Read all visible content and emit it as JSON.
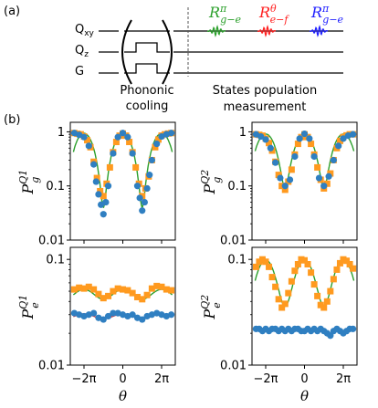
{
  "panel_a": {
    "label": "(a)",
    "lines": [
      {
        "base": "Q",
        "sub": "xy"
      },
      {
        "base": "Q",
        "sub": "z"
      },
      {
        "base": "G",
        "sub": ""
      }
    ],
    "stage1": [
      "Phononic",
      "cooling"
    ],
    "stage2": [
      "States population",
      "measurement"
    ],
    "pulses": [
      {
        "base": "R",
        "sup": "π",
        "sub": "g−e",
        "color": "#2ca02c"
      },
      {
        "base": "R",
        "sup": "θ",
        "sub": "e−f",
        "color": "#ff2020"
      },
      {
        "base": "R",
        "sup": "π",
        "sub": "g−e",
        "color": "#1f1fff"
      }
    ]
  },
  "panel_b": {
    "label": "(b)",
    "y_tick_labels_top": [
      "1",
      "0.1",
      "0.01"
    ],
    "y_tick_labels_bottom": [
      "0.1",
      "0.01"
    ],
    "x_tick_labels": [
      "−2π",
      "0",
      "2π"
    ],
    "xlabel": "θ",
    "ylabels": {
      "pg1": {
        "base": "P",
        "sub": "g",
        "sup": "Q1"
      },
      "pg2": {
        "base": "P",
        "sub": "g",
        "sup": "Q2"
      },
      "pe1": {
        "base": "P",
        "sub": "e",
        "sup": "Q1"
      },
      "pe2": {
        "base": "P",
        "sub": "e",
        "sup": "Q2"
      }
    }
  },
  "colors": {
    "orange": "#ff9a1f",
    "blue": "#2f7fc1",
    "green": "#2ca02c",
    "red": "#e8251f"
  },
  "chart_data": [
    {
      "id": "pg1",
      "type": "scatter",
      "x_range": [
        -8.5,
        8.5
      ],
      "ylim": [
        0.01,
        1.5
      ],
      "yscale": "log",
      "series": [
        {
          "marker": "square",
          "color": "#ff9a1f",
          "x": [
            -7.85,
            -7.33,
            -6.81,
            -6.28,
            -5.76,
            -5.24,
            -4.71,
            -4.19,
            -3.67,
            -3.14,
            -2.62,
            -2.09,
            -1.57,
            -1.05,
            -0.52,
            0,
            0.52,
            1.05,
            1.57,
            2.09,
            2.62,
            3.14,
            3.67,
            4.19,
            4.71,
            5.24,
            5.76,
            6.28,
            6.81,
            7.33,
            7.85
          ],
          "y": [
            0.95,
            0.92,
            0.9,
            0.82,
            0.7,
            0.52,
            0.28,
            0.14,
            0.08,
            0.065,
            0.11,
            0.22,
            0.42,
            0.65,
            0.85,
            0.93,
            0.85,
            0.65,
            0.42,
            0.22,
            0.11,
            0.065,
            0.09,
            0.15,
            0.3,
            0.52,
            0.72,
            0.85,
            0.9,
            0.93,
            0.95
          ]
        },
        {
          "marker": "circle",
          "color": "#2f7fc1",
          "x": [
            -7.85,
            -7.07,
            -6.28,
            -5.5,
            -4.71,
            -4.32,
            -3.93,
            -3.53,
            -3.14,
            -2.75,
            -2.36,
            -1.57,
            -0.79,
            0,
            0.79,
            1.57,
            2.36,
            2.75,
            3.14,
            3.53,
            3.93,
            4.32,
            4.71,
            5.5,
            6.28,
            7.07,
            7.85
          ],
          "y": [
            0.95,
            0.88,
            0.8,
            0.55,
            0.25,
            0.12,
            0.07,
            0.045,
            0.03,
            0.05,
            0.1,
            0.4,
            0.8,
            0.95,
            0.8,
            0.4,
            0.1,
            0.06,
            0.035,
            0.05,
            0.09,
            0.16,
            0.3,
            0.6,
            0.82,
            0.9,
            0.95
          ]
        }
      ]
    },
    {
      "id": "pg2",
      "type": "scatter",
      "x_range": [
        -8.5,
        8.5
      ],
      "ylim": [
        0.01,
        1.5
      ],
      "yscale": "log",
      "series": [
        {
          "marker": "square",
          "color": "#ff9a1f",
          "x": [
            -7.85,
            -7.33,
            -6.81,
            -6.28,
            -5.76,
            -5.24,
            -4.71,
            -4.19,
            -3.67,
            -3.14,
            -2.62,
            -2.09,
            -1.57,
            -1.05,
            -0.52,
            0,
            0.52,
            1.05,
            1.57,
            2.09,
            2.62,
            3.14,
            3.67,
            4.19,
            4.71,
            5.24,
            5.76,
            6.28,
            6.81,
            7.33,
            7.85
          ],
          "y": [
            0.9,
            0.88,
            0.85,
            0.75,
            0.62,
            0.45,
            0.28,
            0.16,
            0.1,
            0.085,
            0.12,
            0.2,
            0.38,
            0.6,
            0.8,
            0.9,
            0.8,
            0.6,
            0.38,
            0.22,
            0.13,
            0.09,
            0.11,
            0.17,
            0.3,
            0.5,
            0.68,
            0.8,
            0.86,
            0.9,
            0.9
          ]
        },
        {
          "marker": "circle",
          "color": "#2f7fc1",
          "x": [
            -7.85,
            -7.07,
            -6.28,
            -5.5,
            -4.71,
            -3.93,
            -3.14,
            -2.36,
            -1.57,
            -0.79,
            0,
            0.79,
            1.57,
            2.36,
            3.14,
            3.93,
            4.71,
            5.5,
            6.28,
            7.07,
            7.85
          ],
          "y": [
            0.9,
            0.82,
            0.72,
            0.5,
            0.27,
            0.14,
            0.1,
            0.13,
            0.35,
            0.75,
            0.92,
            0.75,
            0.35,
            0.14,
            0.1,
            0.15,
            0.3,
            0.55,
            0.75,
            0.85,
            0.9
          ]
        }
      ]
    },
    {
      "id": "pe1",
      "type": "scatter",
      "x_range": [
        -8.5,
        8.5
      ],
      "ylim": [
        0.01,
        0.13
      ],
      "yscale": "log",
      "series": [
        {
          "marker": "square",
          "color": "#ff9a1f",
          "x": [
            -7.85,
            -7.07,
            -6.28,
            -5.5,
            -4.71,
            -3.93,
            -3.14,
            -2.36,
            -1.57,
            -0.79,
            0,
            0.79,
            1.57,
            2.36,
            3.14,
            3.93,
            4.71,
            5.5,
            6.28,
            7.07,
            7.85
          ],
          "y": [
            0.052,
            0.054,
            0.053,
            0.055,
            0.052,
            0.047,
            0.043,
            0.045,
            0.05,
            0.053,
            0.052,
            0.051,
            0.048,
            0.044,
            0.042,
            0.046,
            0.053,
            0.056,
            0.055,
            0.052,
            0.051
          ]
        },
        {
          "marker": "circle",
          "color": "#2f7fc1",
          "x": [
            -7.85,
            -7.07,
            -6.28,
            -5.5,
            -4.71,
            -3.93,
            -3.14,
            -2.36,
            -1.57,
            -0.79,
            0,
            0.79,
            1.57,
            2.36,
            3.14,
            3.93,
            4.71,
            5.5,
            6.28,
            7.07,
            7.85
          ],
          "y": [
            0.031,
            0.03,
            0.029,
            0.03,
            0.031,
            0.028,
            0.027,
            0.029,
            0.031,
            0.031,
            0.03,
            0.029,
            0.03,
            0.028,
            0.027,
            0.029,
            0.03,
            0.031,
            0.03,
            0.029,
            0.03
          ]
        }
      ]
    },
    {
      "id": "pe2",
      "type": "scatter",
      "x_range": [
        -8.5,
        8.5
      ],
      "ylim": [
        0.01,
        0.13
      ],
      "yscale": "log",
      "series": [
        {
          "marker": "square",
          "color": "#ff9a1f",
          "x": [
            -7.85,
            -7.33,
            -6.81,
            -6.28,
            -5.76,
            -5.24,
            -4.71,
            -4.19,
            -3.67,
            -3.14,
            -2.62,
            -2.09,
            -1.57,
            -1.05,
            -0.52,
            0,
            0.52,
            1.05,
            1.57,
            2.09,
            2.62,
            3.14,
            3.67,
            4.19,
            4.71,
            5.24,
            5.76,
            6.28,
            6.81,
            7.33,
            7.85
          ],
          "y": [
            0.085,
            0.095,
            0.1,
            0.095,
            0.085,
            0.068,
            0.055,
            0.042,
            0.035,
            0.038,
            0.048,
            0.062,
            0.078,
            0.09,
            0.1,
            0.098,
            0.09,
            0.075,
            0.058,
            0.045,
            0.037,
            0.035,
            0.04,
            0.05,
            0.065,
            0.08,
            0.092,
            0.1,
            0.097,
            0.09,
            0.082
          ]
        },
        {
          "marker": "circle",
          "color": "#2f7fc1",
          "x": [
            -7.85,
            -7.33,
            -6.81,
            -6.28,
            -5.76,
            -5.24,
            -4.71,
            -4.19,
            -3.67,
            -3.14,
            -2.62,
            -2.09,
            -1.57,
            -1.05,
            -0.52,
            0,
            0.52,
            1.05,
            1.57,
            2.09,
            2.62,
            3.14,
            3.67,
            4.19,
            4.71,
            5.24,
            5.76,
            6.28,
            6.81,
            7.33,
            7.85
          ],
          "y": [
            0.022,
            0.022,
            0.021,
            0.022,
            0.021,
            0.022,
            0.022,
            0.021,
            0.022,
            0.021,
            0.022,
            0.021,
            0.022,
            0.022,
            0.021,
            0.021,
            0.022,
            0.021,
            0.022,
            0.021,
            0.022,
            0.021,
            0.02,
            0.019,
            0.021,
            0.022,
            0.021,
            0.02,
            0.021,
            0.022,
            0.022
          ]
        }
      ]
    }
  ]
}
